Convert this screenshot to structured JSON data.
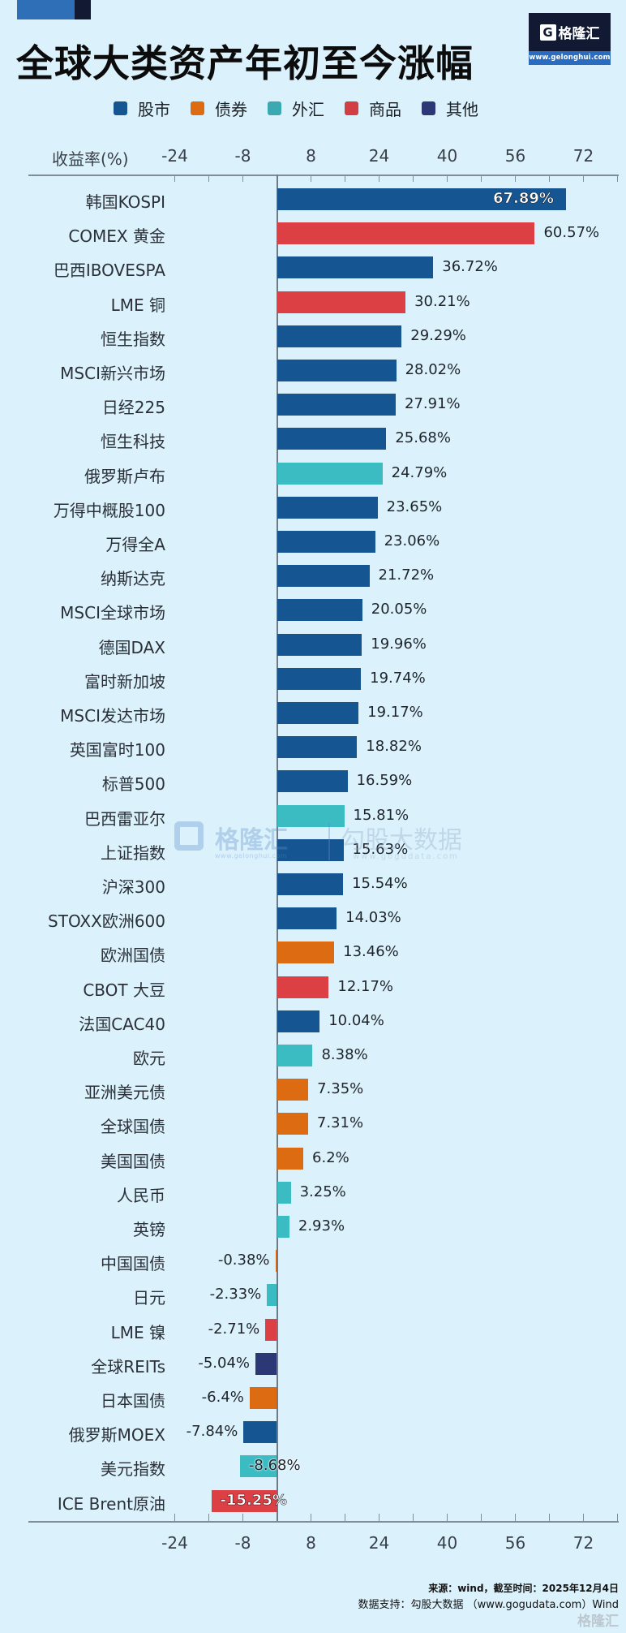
{
  "header": {
    "title": "全球大类资产年初至今涨幅",
    "logo_name": "格隆汇",
    "logo_g": "G",
    "logo_url": "www.gelonghui.com"
  },
  "legend": [
    {
      "label": "股市",
      "color": "#155592"
    },
    {
      "label": "债券",
      "color": "#dd6b12"
    },
    {
      "label": "外汇",
      "color": "#3aa9b2"
    },
    {
      "label": "商品",
      "color": "#d13f45"
    },
    {
      "label": "其他",
      "color": "#2c3775"
    }
  ],
  "colors": {
    "股市": "#155592",
    "债券": "#dd6b12",
    "外汇": "#3bbbc2",
    "商品": "#dc4045",
    "其他": "#2c3775"
  },
  "axis": {
    "title": "收益率(%)",
    "tick_labels": [
      "-24",
      "-8",
      "8",
      "24",
      "40",
      "56",
      "72"
    ]
  },
  "chart_data": {
    "type": "bar",
    "orientation": "horizontal",
    "title": "全球大类资产年初至今涨幅",
    "xlabel": "收益率(%)",
    "ylabel": "",
    "xlim": [
      -24,
      80
    ],
    "x_ticks": [
      -24,
      -8,
      8,
      24,
      40,
      56,
      72
    ],
    "grid": false,
    "legend_position": "top",
    "legend": [
      "股市",
      "债券",
      "外汇",
      "商品",
      "其他"
    ],
    "categories": [
      "韩国KOSPI",
      "COMEX 黄金",
      "巴西IBOVESPA",
      "LME 铜",
      "恒生指数",
      "MSCI新兴市场",
      "日经225",
      "恒生科技",
      "俄罗斯卢布",
      "万得中概股100",
      "万得全A",
      "纳斯达克",
      "MSCI全球市场",
      "德国DAX",
      "富时新加坡",
      "MSCI发达市场",
      "英国富时100",
      "标普500",
      "巴西雷亚尔",
      "上证指数",
      "沪深300",
      "STOXX欧洲600",
      "欧洲国债",
      "CBOT 大豆",
      "法国CAC40",
      "欧元",
      "亚洲美元债",
      "全球国债",
      "美国国债",
      "人民币",
      "英镑",
      "中国国债",
      "日元",
      "LME 镍",
      "全球REITs",
      "日本国债",
      "俄罗斯MOEX",
      "美元指数",
      "ICE Brent原油"
    ],
    "values": [
      67.89,
      60.57,
      36.72,
      30.21,
      29.29,
      28.02,
      27.91,
      25.68,
      24.79,
      23.65,
      23.06,
      21.72,
      20.05,
      19.96,
      19.74,
      19.17,
      18.82,
      16.59,
      15.81,
      15.63,
      15.54,
      14.03,
      13.46,
      12.17,
      10.04,
      8.38,
      7.35,
      7.31,
      6.2,
      3.25,
      2.93,
      -0.38,
      -2.33,
      -2.71,
      -5.04,
      -6.4,
      -7.84,
      -8.68,
      -15.25
    ],
    "value_labels": [
      "67.89%",
      "60.57%",
      "36.72%",
      "30.21%",
      "29.29%",
      "28.02%",
      "27.91%",
      "25.68%",
      "24.79%",
      "23.65%",
      "23.06%",
      "21.72%",
      "20.05%",
      "19.96%",
      "19.74%",
      "19.17%",
      "18.82%",
      "16.59%",
      "15.81%",
      "15.63%",
      "15.54%",
      "14.03%",
      "13.46%",
      "12.17%",
      "10.04%",
      "8.38%",
      "7.35%",
      "7.31%",
      "6.2%",
      "3.25%",
      "2.93%",
      "-0.38%",
      "-2.33%",
      "-2.71%",
      "-5.04%",
      "-6.4%",
      "-7.84%",
      "-8.68%",
      "-15.25%"
    ],
    "asset_class": [
      "股市",
      "商品",
      "股市",
      "商品",
      "股市",
      "股市",
      "股市",
      "股市",
      "外汇",
      "股市",
      "股市",
      "股市",
      "股市",
      "股市",
      "股市",
      "股市",
      "股市",
      "股市",
      "外汇",
      "股市",
      "股市",
      "股市",
      "债券",
      "商品",
      "股市",
      "外汇",
      "债券",
      "债券",
      "债券",
      "外汇",
      "外汇",
      "债券",
      "外汇",
      "商品",
      "其他",
      "债券",
      "股市",
      "外汇",
      "商品"
    ]
  },
  "watermark": {
    "brand1": "格隆汇",
    "url1": "www.gelonghui.com",
    "brand2": "勾股大数据",
    "url2": "www.gogudata.com"
  },
  "footer": {
    "source": "来源：wind，截至时间：2025年12月4日",
    "support": "数据支持：勾股大数据 （www.gogudata.com）Wind",
    "logo": "格隆汇"
  }
}
